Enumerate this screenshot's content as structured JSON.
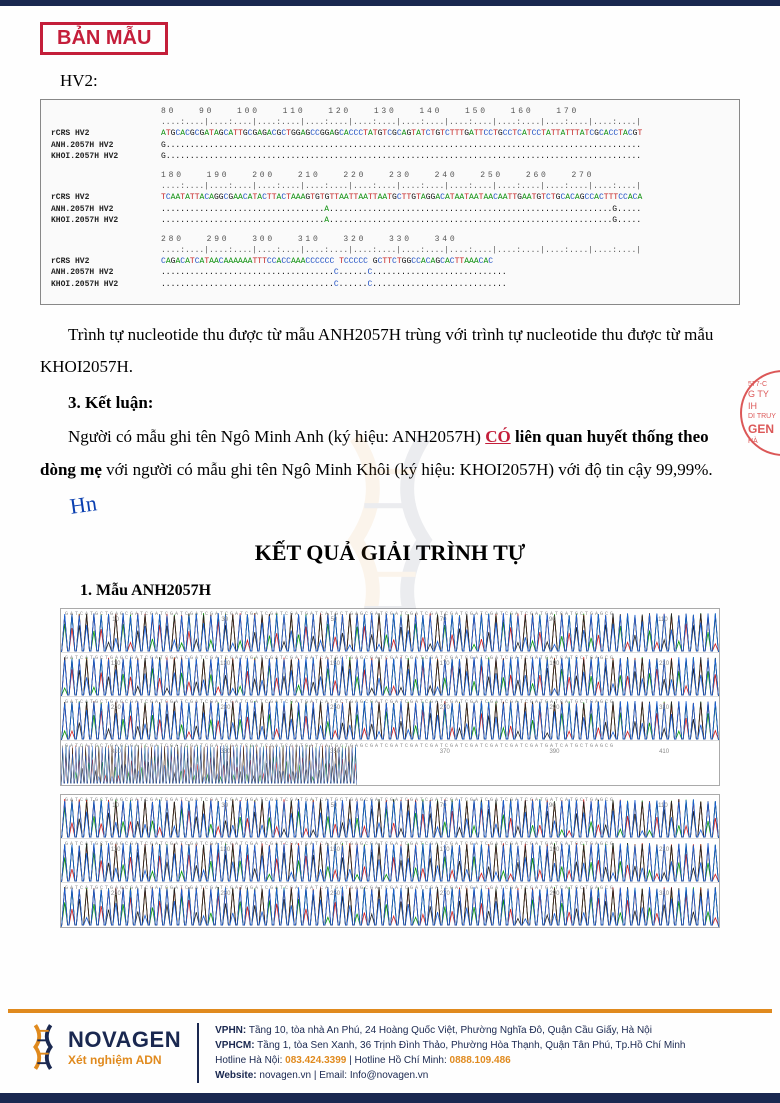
{
  "stamp_label": "BẢN MẪU",
  "hv_label": "HV2:",
  "alignment": {
    "blocks": [
      {
        "ruler": "80   90   100   110   120   130   140   150   160   170",
        "rows": [
          {
            "label": "rCRS HV2",
            "seq": "ATGCACGCGATAGCATTGCGAGACGCTGGAGCCGGAGCACCCTATGTCGCAGTATCTGTCTTTGATTCCTGCCTCATCCTATTATTTATCGCACCTACGT"
          },
          {
            "label": "ANH.2057H HV2",
            "seq": "G..................................................................................................."
          },
          {
            "label": "KHOI.2057H HV2",
            "seq": "G..................................................................................................."
          }
        ]
      },
      {
        "ruler": "180   190   200   210   220   230   240   250   260   270",
        "rows": [
          {
            "label": "rCRS HV2",
            "seq": "TCAATATTACAGGCGAACATACTTACTAAAGTGTGTTAATTAATTAATGCTTGTAGGACATAATAATAACAATTGAATGTCTGCACAGCCACTTTCCACA"
          },
          {
            "label": "ANH.2057H HV2",
            "seq": "..................................A...........................................................G....."
          },
          {
            "label": "KHOI.2057H HV2",
            "seq": "..................................A...........................................................G....."
          }
        ]
      },
      {
        "ruler": "280   290   300   310   320   330   340",
        "rows": [
          {
            "label": "rCRS HV2",
            "seq": "CAGACATCATAACAAAAAATTTCCACCAAACCCCCC TCCCCC GCTTCTGGCCACAGCACTTAAACAC"
          },
          {
            "label": "ANH.2057H HV2",
            "seq": "....................................C......C............................"
          },
          {
            "label": "KHOI.2057H HV2",
            "seq": "....................................C......C............................"
          }
        ]
      }
    ]
  },
  "para1": "Trình tự nucleotide thu được từ mẫu ANH2057H trùng với trình tự nucleotide thu được từ mẫu KHOI2057H.",
  "section3": "3. Kết luận:",
  "conclusion": {
    "pre": "Người có mẫu ghi tên Ngô Minh Anh (ký hiệu: ANH2057H) ",
    "co": "CÓ",
    "mid": " liên quan huyết thống theo dòng mẹ",
    "post": " với người có mẫu ghi tên Ngô Minh Khôi (ký hiệu: KHOI2057H) với độ tin cậy 99,99%."
  },
  "main_title": "KẾT QUẢ GIẢI TRÌNH TỰ",
  "sample1_head": "1. Mẫu ANH2057H",
  "chrom_colors": {
    "a": "#0a9a0a",
    "t": "#d62020",
    "g": "#222",
    "c": "#1860d6"
  },
  "chrom_rows1": 4,
  "chrom_rows2": 3,
  "footer": {
    "brand": "NOVAGEN",
    "tagline": "Xét nghiệm ADN",
    "line1_label": "VPHN:",
    "line1": " Tầng 10, tòa nhà An Phú, 24 Hoàng Quốc Việt, Phường Nghĩa Đô, Quận Cầu Giấy, Hà Nội",
    "line2_label": "VPHCM:",
    "line2": " Tầng 1, tòa Sen Xanh, 36 Trịnh Đình Thảo, Phường Hòa Thạnh, Quận Tân Phú, Tp.Hồ Chí Minh",
    "line3a": "Hotline Hà Nội: ",
    "phone1": "083.424.3399",
    "line3b": " | Hotline Hồ Chí Minh: ",
    "phone2": "0888.109.486",
    "line4a": "Website:",
    "website": " novagen.vn ",
    "line4b": "| Email: ",
    "email": "Info@novagen.vn"
  },
  "side_stamp": {
    "l1": "G TY",
    "l2": "IH",
    "l3": "DI TRUY",
    "l4": "GEN",
    "l5": "HÀ"
  }
}
